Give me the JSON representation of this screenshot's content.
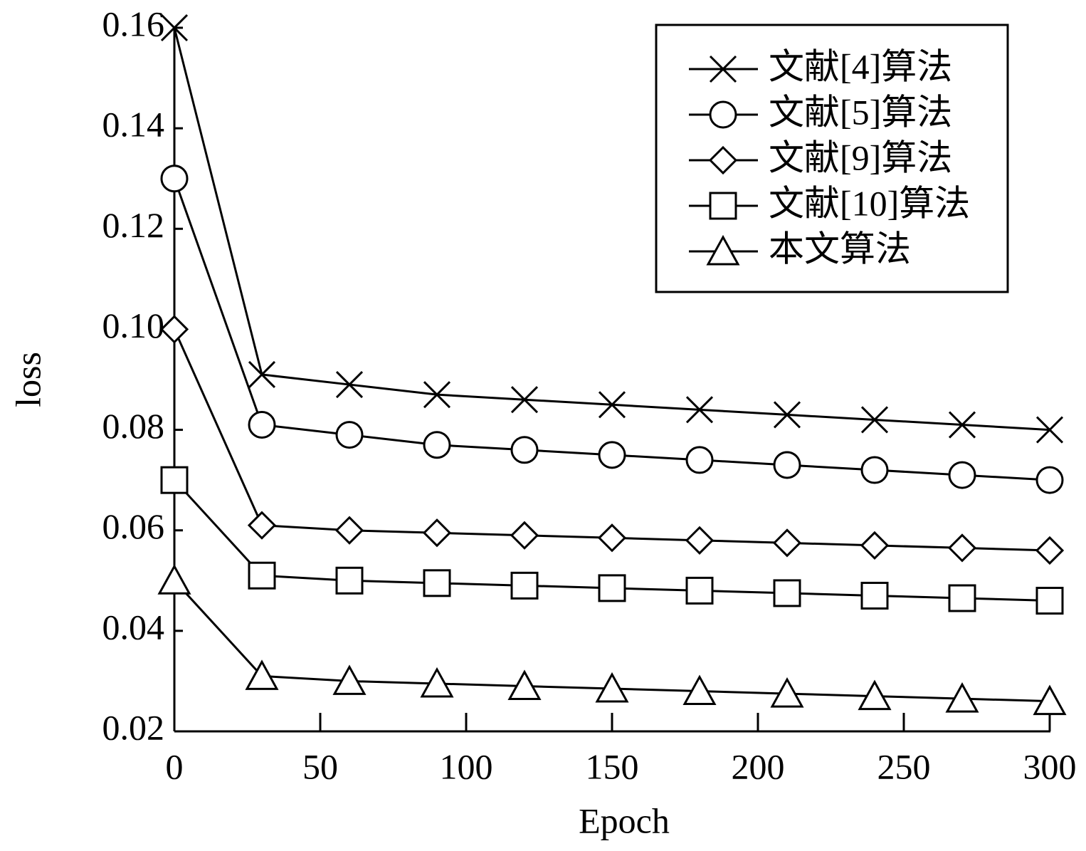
{
  "chart_data": {
    "type": "line",
    "x_label": "Epoch",
    "y_label": "loss",
    "x": [
      0,
      30,
      60,
      90,
      120,
      150,
      180,
      210,
      240,
      270,
      300
    ],
    "series": [
      {
        "name": "文献[4]算法",
        "color": "#000000",
        "marker": "x",
        "values": [
          0.16,
          0.091,
          0.089,
          0.087,
          0.086,
          0.085,
          0.084,
          0.083,
          0.082,
          0.081,
          0.08
        ]
      },
      {
        "name": "文献[5]算法",
        "color": "#000000",
        "marker": "o",
        "values": [
          0.13,
          0.081,
          0.079,
          0.077,
          0.076,
          0.075,
          0.074,
          0.073,
          0.072,
          0.071,
          0.07
        ]
      },
      {
        "name": "文献[9]算法",
        "color": "#000000",
        "marker": "d",
        "values": [
          0.1,
          0.061,
          0.06,
          0.0595,
          0.059,
          0.0585,
          0.058,
          0.0575,
          0.057,
          0.0565,
          0.056
        ]
      },
      {
        "name": "文献[10]算法",
        "color": "#000000",
        "marker": "s",
        "values": [
          0.07,
          0.051,
          0.05,
          0.0495,
          0.049,
          0.0485,
          0.048,
          0.0475,
          0.047,
          0.0465,
          0.046
        ]
      },
      {
        "name": "本文算法",
        "color": "#000000",
        "marker": "^",
        "values": [
          0.05,
          0.031,
          0.03,
          0.0295,
          0.029,
          0.0285,
          0.028,
          0.0275,
          0.027,
          0.0265,
          0.026
        ]
      }
    ],
    "xlim": [
      0,
      300
    ],
    "xticks": [
      0,
      50,
      100,
      150,
      200,
      250,
      300
    ],
    "ylim": [
      0.02,
      0.16
    ],
    "yticks": [
      0.02,
      0.04,
      0.06,
      0.08,
      {
        "value": 0.1,
        "label": "0.10"
      },
      0.12,
      0.14,
      0.16
    ],
    "grid": false,
    "legend": "upper right"
  }
}
